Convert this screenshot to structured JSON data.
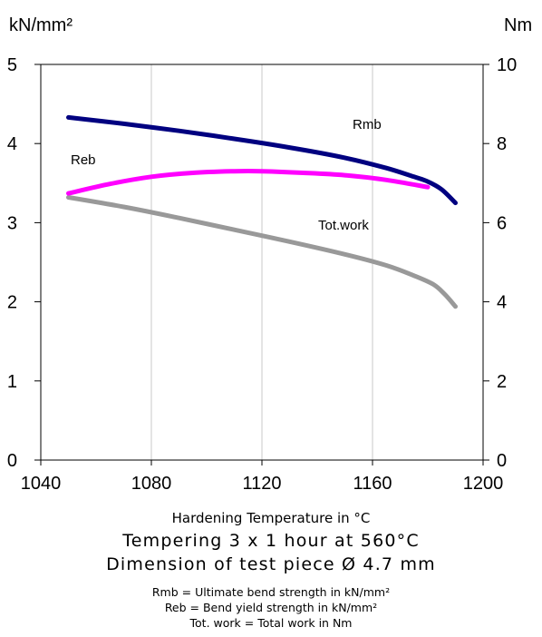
{
  "chart_data": {
    "type": "line",
    "y_left_label": "kN/mm²",
    "y_right_label": "Nm",
    "xlabel": "Hardening Temperature in °C",
    "xlim": [
      1040,
      1200
    ],
    "x_ticks": [
      1040,
      1080,
      1120,
      1160,
      1200
    ],
    "ylim_left": [
      0,
      5
    ],
    "y_ticks_left": [
      0,
      1,
      2,
      3,
      4,
      5
    ],
    "ylim_right": [
      0,
      10
    ],
    "y_ticks_right": [
      0,
      2,
      4,
      6,
      8,
      10
    ],
    "grid": "vertical",
    "series": [
      {
        "name": "Rmb",
        "color": "#000080",
        "axis": "left",
        "x": [
          1050,
          1070,
          1090,
          1110,
          1130,
          1150,
          1165,
          1175,
          1180,
          1185,
          1190
        ],
        "y": [
          4.33,
          4.25,
          4.16,
          4.06,
          3.95,
          3.82,
          3.69,
          3.58,
          3.52,
          3.42,
          3.25
        ]
      },
      {
        "name": "Reb",
        "color": "#ff00ff",
        "axis": "left",
        "x": [
          1050,
          1065,
          1080,
          1095,
          1110,
          1120,
          1135,
          1150,
          1165,
          1180
        ],
        "y": [
          3.37,
          3.49,
          3.58,
          3.63,
          3.65,
          3.65,
          3.63,
          3.6,
          3.54,
          3.45
        ]
      },
      {
        "name": "Tot.work",
        "color": "#999999",
        "axis": "right",
        "x": [
          1050,
          1070,
          1090,
          1110,
          1130,
          1150,
          1165,
          1175,
          1182,
          1186,
          1190
        ],
        "y": [
          6.64,
          6.4,
          6.12,
          5.82,
          5.52,
          5.2,
          4.92,
          4.66,
          4.44,
          4.2,
          3.88
        ]
      }
    ],
    "annotations": [
      "Rmb",
      "Reb",
      "Tot.work"
    ]
  },
  "captions": {
    "line1": "Tempering 3 x 1 hour at 560°C",
    "line2": "Dimension of test piece Ø 4.7 mm"
  },
  "legend_notes": {
    "rmb": "Rmb = Ultimate bend strength in kN/mm²",
    "reb": "Reb =   Bend yield strength in kN/mm²",
    "tot": "Tot. work = Total work in Nm"
  }
}
